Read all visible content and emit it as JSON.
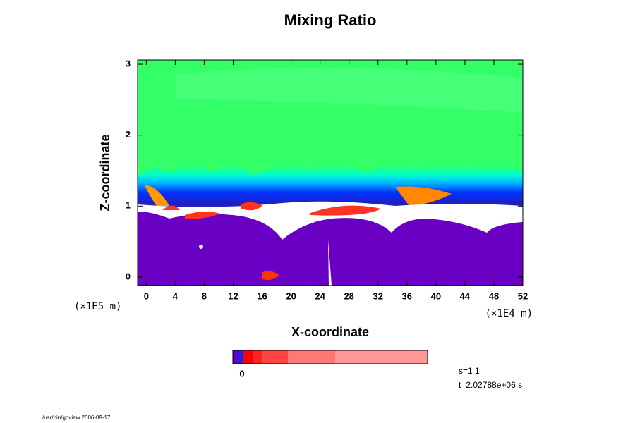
{
  "chart_data": {
    "type": "contour",
    "title": "Mixing Ratio",
    "x_label": "X-coordinate",
    "y_label": "Z-coordinate",
    "x_unit": "(×1E4 m)",
    "y_unit": "(×1E5 m)",
    "xlim": [
      -1.2,
      52
    ],
    "ylim": [
      -0.12,
      3.06
    ],
    "xticks": [
      0,
      4,
      8,
      12,
      16,
      20,
      24,
      28,
      32,
      36,
      40,
      44,
      48,
      52
    ],
    "yticks": [
      0,
      1,
      2,
      3
    ],
    "colorbar": {
      "colors": [
        "#6600cc",
        "#2222dd",
        "#ff0000",
        "#ff2222",
        "#ff4444",
        "#ff7777",
        "#ff9999"
      ],
      "label": "0"
    },
    "annotations": [
      "s=1 1",
      "t=2.02788e+06 s"
    ],
    "footer": "/usr/bin/gpview 2006-09-17"
  }
}
